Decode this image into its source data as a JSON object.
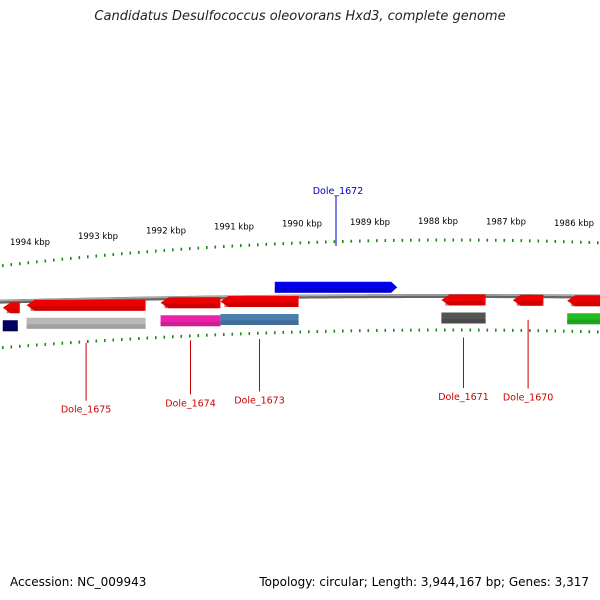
{
  "title": "Candidatus Desulfococcus oleovorans Hxd3, complete genome",
  "accession": "Accession: NC_009943",
  "summary": "Topology: circular; Length: 3,944,167 bp; Genes: 3,317",
  "colors": {
    "backbone": "#888888",
    "tick": "#1a8a1a",
    "label_red": "#cc0000",
    "label_blue": "#0000cc",
    "red_gene": "#ee0000",
    "grey_gene": "#b8b8b8",
    "magenta_gene": "#ee22aa",
    "steel_gene": "#4a7fae",
    "blue_gene": "#0000ee",
    "dark_gene": "#555555",
    "navy_gene": "#000066",
    "green_gene": "#22bb22"
  },
  "ruler": [
    {
      "label": "1994 kbp"
    },
    {
      "label": "1993 kbp"
    },
    {
      "label": "1992 kbp"
    },
    {
      "label": "1991 kbp"
    },
    {
      "label": "1990 kbp"
    },
    {
      "label": "1989 kbp"
    },
    {
      "label": "1988 kbp"
    },
    {
      "label": "1987 kbp"
    },
    {
      "label": "1986 kbp"
    }
  ],
  "genes": [
    {
      "name": "",
      "strand": "+",
      "kbp_start": 1994.4,
      "kbp_end": 1994.15,
      "color": "#ee0000"
    },
    {
      "name": "",
      "strand": "-",
      "kbp_start": 1994.4,
      "kbp_end": 1994.18,
      "color": "#000066"
    },
    {
      "name": "",
      "strand": "+",
      "kbp_start": 1994.05,
      "kbp_end": 1992.3,
      "color": "#ee0000"
    },
    {
      "name": "Dole_1675",
      "strand": "-",
      "kbp_start": 1994.05,
      "kbp_end": 1992.3,
      "color": "#b8b8b8"
    },
    {
      "name": "",
      "strand": "+",
      "kbp_start": 1992.08,
      "kbp_end": 1991.2,
      "color": "#ee0000"
    },
    {
      "name": "Dole_1674",
      "strand": "-",
      "kbp_start": 1992.08,
      "kbp_end": 1991.2,
      "color": "#ee22aa"
    },
    {
      "name": "",
      "strand": "+",
      "kbp_start": 1991.2,
      "kbp_end": 1990.05,
      "color": "#ee0000"
    },
    {
      "name": "Dole_1673",
      "strand": "-",
      "kbp_start": 1991.2,
      "kbp_end": 1990.05,
      "color": "#4a7fae"
    },
    {
      "name": "Dole_1672",
      "strand": "+",
      "kbp_start": 1990.4,
      "kbp_end": 1988.6,
      "color": "#0000ee"
    },
    {
      "name": "",
      "strand": "+",
      "kbp_start": 1987.95,
      "kbp_end": 1987.3,
      "color": "#ee0000"
    },
    {
      "name": "Dole_1671",
      "strand": "-",
      "kbp_start": 1987.95,
      "kbp_end": 1987.3,
      "color": "#555555"
    },
    {
      "name": "Dole_1670",
      "strand": "+",
      "kbp_start": 1986.9,
      "kbp_end": 1986.45,
      "color": "#ee0000"
    },
    {
      "name": "",
      "strand": "+",
      "kbp_start": 1986.1,
      "kbp_end": 1985.5,
      "color": "#ee0000"
    },
    {
      "name": "",
      "strand": "-",
      "kbp_start": 1986.1,
      "kbp_end": 1985.5,
      "color": "#22bb22"
    }
  ]
}
